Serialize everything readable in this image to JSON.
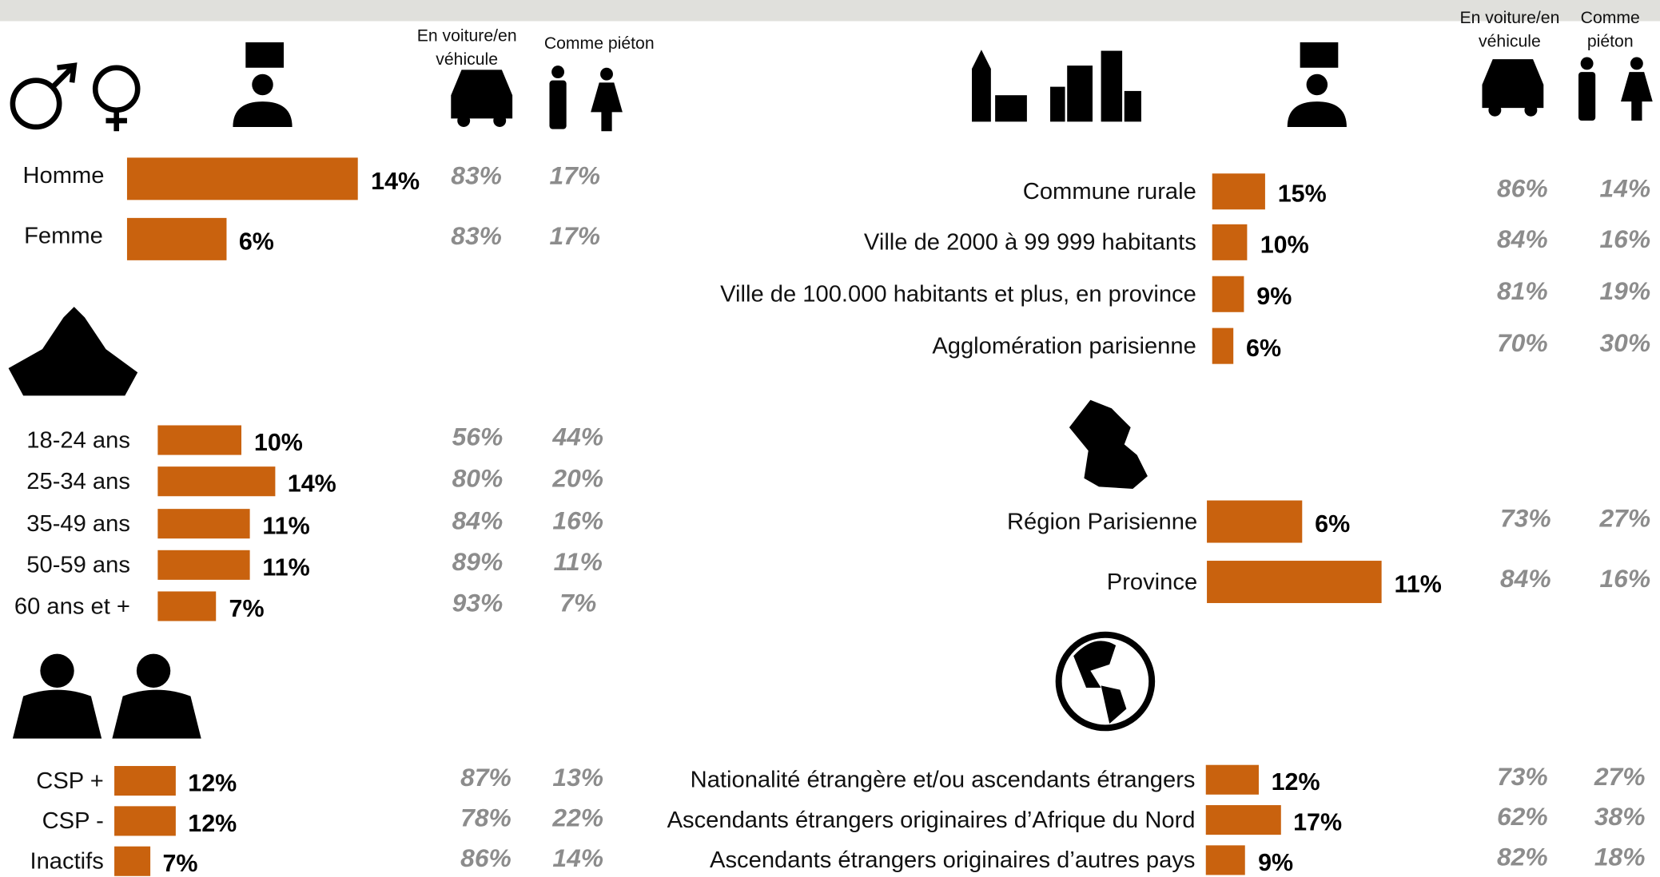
{
  "headers": {
    "left": [
      "En voiture/en véhicule",
      "Comme piéton"
    ],
    "right": [
      "En voiture/en véhicule",
      "Comme piéton"
    ]
  },
  "chart_data": [
    {
      "type": "bar",
      "color": "#c9620e",
      "categories": [
        "Homme",
        "Femme"
      ],
      "values": [
        14,
        6
      ],
      "value_labels": [
        "14%",
        "6%"
      ],
      "car_values": [
        83,
        83
      ],
      "car_labels": [
        "83%",
        "83%"
      ],
      "pedestrian_values": [
        17,
        17
      ],
      "pedestrian_labels": [
        "17%",
        "17%"
      ]
    },
    {
      "type": "bar",
      "color": "#c9620e",
      "categories": [
        "18-24 ans",
        "25-34 ans",
        "35-49 ans",
        "50-59 ans",
        "60 ans et +"
      ],
      "values": [
        10,
        14,
        11,
        11,
        7
      ],
      "value_labels": [
        "10%",
        "14%",
        "11%",
        "11%",
        "7%"
      ],
      "car_values": [
        56,
        80,
        84,
        89,
        93
      ],
      "car_labels": [
        "56%",
        "80%",
        "84%",
        "89%",
        "93%"
      ],
      "pedestrian_values": [
        44,
        20,
        16,
        11,
        7
      ],
      "pedestrian_labels": [
        "44%",
        "20%",
        "16%",
        "11%",
        "7%"
      ]
    },
    {
      "type": "bar",
      "color": "#c9620e",
      "categories": [
        "CSP +",
        "CSP -",
        "Inactifs"
      ],
      "values": [
        12,
        12,
        7
      ],
      "value_labels": [
        "12%",
        "12%",
        "7%"
      ],
      "car_values": [
        87,
        78,
        86
      ],
      "car_labels": [
        "87%",
        "78%",
        "86%"
      ],
      "pedestrian_values": [
        13,
        22,
        14
      ],
      "pedestrian_labels": [
        "13%",
        "22%",
        "14%"
      ]
    },
    {
      "type": "bar",
      "color": "#c9620e",
      "categories": [
        "Commune rurale",
        "Ville de 2000 à 99 999 habitants",
        "Ville de 100.000 habitants et plus, en province",
        "Agglomération parisienne"
      ],
      "values": [
        15,
        10,
        9,
        6
      ],
      "value_labels": [
        "15%",
        "10%",
        "9%",
        "6%"
      ],
      "car_values": [
        86,
        84,
        81,
        70
      ],
      "car_labels": [
        "86%",
        "84%",
        "81%",
        "70%"
      ],
      "pedestrian_values": [
        14,
        16,
        19,
        30
      ],
      "pedestrian_labels": [
        "14%",
        "16%",
        "19%",
        "30%"
      ]
    },
    {
      "type": "bar",
      "color": "#c9620e",
      "categories": [
        "Région Parisienne",
        "Province"
      ],
      "values": [
        6,
        11
      ],
      "value_labels": [
        "6%",
        "11%"
      ],
      "car_values": [
        73,
        84
      ],
      "car_labels": [
        "73%",
        "84%"
      ],
      "pedestrian_values": [
        27,
        16
      ],
      "pedestrian_labels": [
        "27%",
        "16%"
      ]
    },
    {
      "type": "bar",
      "color": "#c9620e",
      "categories": [
        "Nationalité étrangère et/ou ascendants étrangers",
        "Ascendants étrangers originaires d’Afrique du Nord",
        "Ascendants étrangers originaires d’autres pays"
      ],
      "values": [
        12,
        17,
        9
      ],
      "value_labels": [
        "12%",
        "17%",
        "9%"
      ],
      "car_values": [
        73,
        62,
        82
      ],
      "car_labels": [
        "73%",
        "62%",
        "82%"
      ],
      "pedestrian_values": [
        27,
        38,
        18
      ],
      "pedestrian_labels": [
        "27%",
        "38%",
        "18%"
      ]
    }
  ]
}
